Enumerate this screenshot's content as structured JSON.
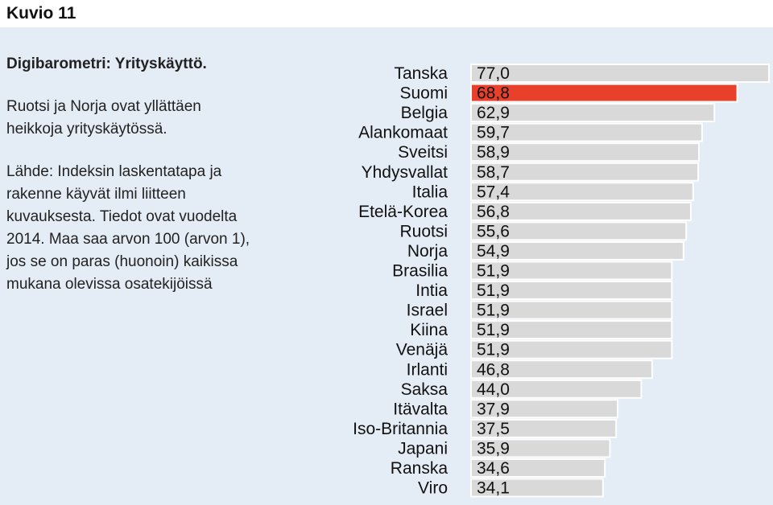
{
  "figure": {
    "label": "Kuvio 11",
    "title": "Digibarometri: Yrityskäyttö.",
    "subtitle_lines": [
      "Ruotsi ja Norja ovat yllättäen",
      "heikkoja yrityskäytössä."
    ],
    "note_lines": [
      "Lähde: Indeksin laskentatapa ja",
      "rakenne käyvät ilmi liitteen",
      "kuvauksesta. Tiedot ovat vuodelta",
      "2014. Maa saa arvon 100 (arvon 1),",
      "jos se on paras (huonoin) kaikissa",
      "mukana olevissa osatekijöissä"
    ]
  },
  "chart_data": {
    "type": "bar",
    "orientation": "horizontal",
    "categories": [
      "Tanska",
      "Suomi",
      "Belgia",
      "Alankomaat",
      "Sveitsi",
      "Yhdysvallat",
      "Italia",
      "Etelä-Korea",
      "Ruotsi",
      "Norja",
      "Brasilia",
      "Intia",
      "Israel",
      "Kiina",
      "Venäjä",
      "Irlanti",
      "Saksa",
      "Itävalta",
      "Iso-Britannia",
      "Japani",
      "Ranska",
      "Viro"
    ],
    "values": [
      77.0,
      68.8,
      62.9,
      59.7,
      58.9,
      58.7,
      57.4,
      56.8,
      55.6,
      54.9,
      51.9,
      51.9,
      51.9,
      51.9,
      51.9,
      46.8,
      44.0,
      37.9,
      37.5,
      35.9,
      34.6,
      34.1
    ],
    "value_labels": [
      "77,0",
      "68,8",
      "62,9",
      "59,7",
      "58,9",
      "58,7",
      "57,4",
      "56,8",
      "55,6",
      "54,9",
      "51,9",
      "51,9",
      "51,9",
      "51,9",
      "51,9",
      "46,8",
      "44,0",
      "37,9",
      "37,5",
      "35,9",
      "34,6",
      "34,1"
    ],
    "highlight_index": 1,
    "xlim": [
      0,
      77
    ],
    "colors": {
      "bar": "#d9d9d9",
      "bar_highlight": "#e8402a",
      "bar_border": "#ffffff",
      "label_highlight": "#ffffff",
      "label": "#111111"
    }
  }
}
